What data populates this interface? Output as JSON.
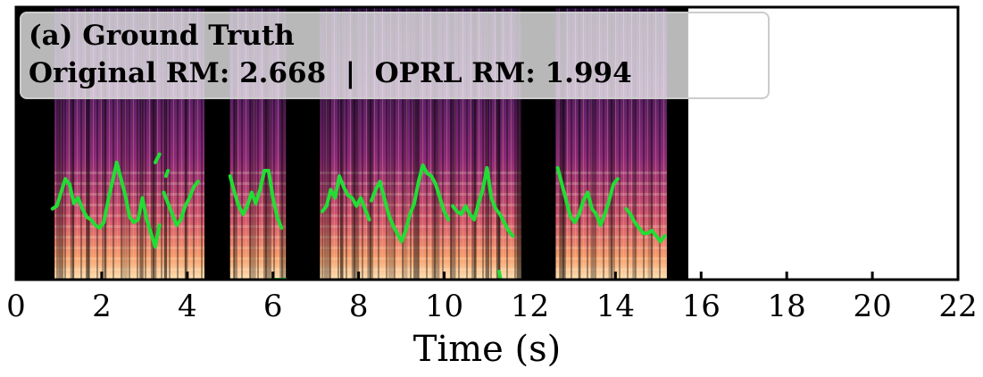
{
  "chart_data": {
    "type": "heatmap",
    "panel_label": "(a) Ground Truth",
    "annotation_parts": {
      "original_label": "Original RM:",
      "original_value": "2.668",
      "separator": "|",
      "oprl_label": "OPRL RM:",
      "oprl_value": "1.994"
    },
    "xlabel": "Time (s)",
    "x_ticks": [
      0,
      2,
      4,
      6,
      8,
      10,
      12,
      14,
      16,
      18,
      20,
      22
    ],
    "xlim": [
      0,
      22
    ],
    "audio_end_s": 15.7,
    "voiced_segments_s": [
      [
        0.9,
        4.4
      ],
      [
        5.0,
        6.3
      ],
      [
        7.1,
        11.8
      ],
      [
        12.6,
        15.2
      ]
    ],
    "pitch_contour": [
      {
        "name": "segment1",
        "points": [
          [
            0.85,
            0.26
          ],
          [
            0.95,
            0.27
          ],
          [
            1.05,
            0.32
          ],
          [
            1.15,
            0.37
          ],
          [
            1.25,
            0.35
          ],
          [
            1.35,
            0.28
          ],
          [
            1.45,
            0.3
          ],
          [
            1.55,
            0.26
          ],
          [
            1.65,
            0.23
          ],
          [
            1.75,
            0.22
          ],
          [
            1.85,
            0.2
          ],
          [
            1.95,
            0.19
          ],
          [
            2.05,
            0.21
          ],
          [
            2.15,
            0.29
          ],
          [
            2.25,
            0.36
          ],
          [
            2.35,
            0.43
          ],
          [
            2.45,
            0.37
          ],
          [
            2.55,
            0.31
          ],
          [
            2.65,
            0.23
          ],
          [
            2.75,
            0.21
          ],
          [
            2.85,
            0.22
          ],
          [
            2.95,
            0.3
          ],
          [
            3.05,
            0.22
          ],
          [
            3.15,
            0.17
          ],
          [
            3.25,
            0.12
          ],
          [
            3.35,
            0.2
          ]
        ]
      },
      {
        "name": "segment2",
        "points": [
          [
            3.45,
            0.32
          ],
          [
            3.55,
            0.28
          ],
          [
            3.65,
            0.24
          ],
          [
            3.75,
            0.2
          ],
          [
            3.85,
            0.22
          ],
          [
            3.95,
            0.27
          ],
          [
            4.05,
            0.3
          ],
          [
            4.15,
            0.34
          ],
          [
            4.25,
            0.36
          ]
        ]
      },
      {
        "name": "segment3",
        "points": [
          [
            5.0,
            0.38
          ],
          [
            5.1,
            0.32
          ],
          [
            5.2,
            0.27
          ],
          [
            5.3,
            0.24
          ],
          [
            5.4,
            0.27
          ],
          [
            5.5,
            0.32
          ],
          [
            5.6,
            0.28
          ],
          [
            5.7,
            0.33
          ],
          [
            5.8,
            0.4
          ],
          [
            5.9,
            0.4
          ],
          [
            6.0,
            0.3
          ],
          [
            6.1,
            0.23
          ],
          [
            6.2,
            0.19
          ]
        ]
      },
      {
        "name": "segment4",
        "points": [
          [
            7.15,
            0.25
          ],
          [
            7.25,
            0.27
          ],
          [
            7.35,
            0.33
          ],
          [
            7.45,
            0.3
          ],
          [
            7.55,
            0.38
          ],
          [
            7.65,
            0.34
          ],
          [
            7.75,
            0.31
          ],
          [
            7.85,
            0.3
          ],
          [
            7.95,
            0.27
          ],
          [
            8.05,
            0.3
          ],
          [
            8.15,
            0.26
          ],
          [
            8.25,
            0.22
          ]
        ]
      },
      {
        "name": "segment5",
        "points": [
          [
            8.3,
            0.29
          ],
          [
            8.4,
            0.33
          ],
          [
            8.5,
            0.36
          ],
          [
            8.6,
            0.3
          ],
          [
            8.7,
            0.24
          ],
          [
            8.8,
            0.2
          ],
          [
            8.9,
            0.17
          ],
          [
            9.0,
            0.14
          ],
          [
            9.1,
            0.18
          ],
          [
            9.2,
            0.24
          ],
          [
            9.3,
            0.28
          ],
          [
            9.4,
            0.36
          ],
          [
            9.5,
            0.42
          ],
          [
            9.6,
            0.39
          ],
          [
            9.7,
            0.38
          ],
          [
            9.8,
            0.35
          ],
          [
            9.9,
            0.3
          ],
          [
            10.0,
            0.25
          ],
          [
            10.1,
            0.22
          ]
        ]
      },
      {
        "name": "segment6",
        "points": [
          [
            10.2,
            0.27
          ],
          [
            10.3,
            0.25
          ],
          [
            10.4,
            0.24
          ],
          [
            10.5,
            0.27
          ],
          [
            10.6,
            0.24
          ],
          [
            10.7,
            0.22
          ],
          [
            10.8,
            0.28
          ],
          [
            10.9,
            0.33
          ],
          [
            11.0,
            0.41
          ],
          [
            11.1,
            0.3
          ],
          [
            11.2,
            0.26
          ],
          [
            11.3,
            0.24
          ],
          [
            11.4,
            0.21
          ],
          [
            11.5,
            0.18
          ],
          [
            11.6,
            0.16
          ]
        ]
      },
      {
        "name": "segment7",
        "points": [
          [
            12.65,
            0.41
          ],
          [
            12.75,
            0.35
          ],
          [
            12.85,
            0.29
          ],
          [
            12.95,
            0.23
          ],
          [
            13.05,
            0.21
          ],
          [
            13.15,
            0.24
          ],
          [
            13.25,
            0.29
          ],
          [
            13.35,
            0.32
          ],
          [
            13.45,
            0.26
          ],
          [
            13.55,
            0.24
          ],
          [
            13.65,
            0.2
          ],
          [
            13.75,
            0.24
          ],
          [
            13.85,
            0.29
          ],
          [
            13.95,
            0.35
          ],
          [
            14.05,
            0.37
          ]
        ]
      },
      {
        "name": "segment8",
        "points": [
          [
            14.25,
            0.26
          ],
          [
            14.35,
            0.24
          ],
          [
            14.45,
            0.21
          ],
          [
            14.55,
            0.19
          ],
          [
            14.65,
            0.17
          ],
          [
            14.75,
            0.17
          ],
          [
            14.85,
            0.18
          ],
          [
            14.95,
            0.16
          ],
          [
            15.05,
            0.14
          ],
          [
            15.15,
            0.16
          ]
        ]
      }
    ],
    "pitch_fragments": [
      [
        [
          5.95,
          0.0
        ],
        [
          6.3,
          0.0
        ]
      ],
      [
        [
          11.28,
          0.03
        ],
        [
          11.32,
          0.0
        ]
      ],
      [
        [
          3.25,
          0.43
        ],
        [
          3.35,
          0.46
        ]
      ],
      [
        [
          3.5,
          0.38
        ],
        [
          3.55,
          0.4
        ]
      ]
    ],
    "colors": {
      "contour": "#22dd33",
      "background": "#000000",
      "spectrogram_low": "#1a0b2e",
      "spectrogram_mid": "#8b2a78",
      "spectrogram_high": "#f4a070",
      "spectrogram_peak": "#fde3b5"
    },
    "legend_placement": "top-left",
    "grid": false
  }
}
